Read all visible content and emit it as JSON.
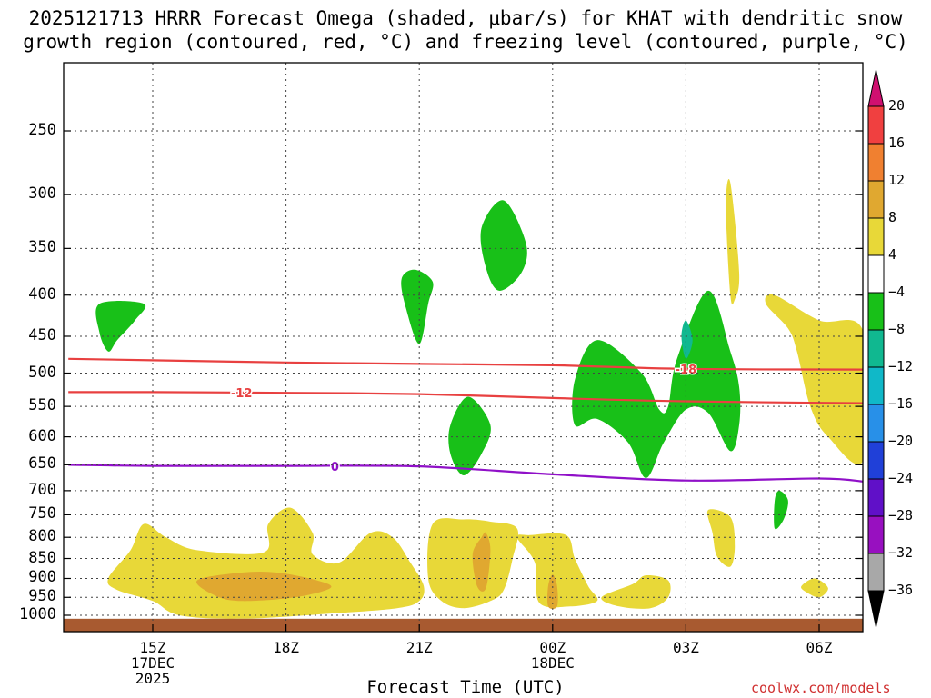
{
  "title_line1": "2025121713 HRRR Forecast Omega (shaded, μbar/s) for KHAT with dendritic snow",
  "title_line2": "growth region (contoured, red, °C) and freezing level (contoured, purple, °C)",
  "x_axis_title": "Forecast Time (UTC)",
  "credit": "coolwx.com/models",
  "chart_data": {
    "type": "time-height cross section",
    "y_axis": {
      "quantity": "pressure (mb)",
      "ticks": [
        250,
        300,
        350,
        400,
        450,
        500,
        550,
        600,
        650,
        700,
        750,
        800,
        850,
        900,
        950,
        1000
      ],
      "range": [
        200,
        1030
      ],
      "scale": "log-pressure"
    },
    "x_axis": {
      "range": [
        "2025-12-17 13Z",
        "2025-12-18 07Z"
      ],
      "ticks": [
        {
          "t": 15,
          "label": "15Z",
          "sub1": "17DEC",
          "sub2": "2025"
        },
        {
          "t": 18,
          "label": "18Z",
          "sub1": "",
          "sub2": ""
        },
        {
          "t": 21,
          "label": "21Z",
          "sub1": "",
          "sub2": ""
        },
        {
          "t": 24,
          "label": "00Z",
          "sub1": "18DEC",
          "sub2": ""
        },
        {
          "t": 27,
          "label": "03Z",
          "sub1": "",
          "sub2": ""
        },
        {
          "t": 30,
          "label": "06Z",
          "sub1": "",
          "sub2": ""
        }
      ]
    },
    "grid": true,
    "colorbar": {
      "labels": [
        "20",
        "16",
        "12",
        "8",
        "4",
        "−4",
        "−8",
        "−12",
        "−16",
        "−20",
        "−24",
        "−28",
        "−32",
        "−36"
      ],
      "colors": [
        "#d01070",
        "#f04040",
        "#f08030",
        "#e0a830",
        "#e8d838",
        "#ffffff",
        "#18c018",
        "#10b890",
        "#10b8c8",
        "#2890e8",
        "#2040d8",
        "#6010c8",
        "#9810c0",
        "#a8a8a8",
        "#000000"
      ]
    },
    "contours": [
      {
        "color": "#e84040",
        "label": "-12",
        "points": [
          [
            13.1,
            528
          ],
          [
            15,
            528
          ],
          [
            18,
            529
          ],
          [
            21,
            531
          ],
          [
            24,
            537
          ],
          [
            27,
            542
          ],
          [
            31,
            545
          ]
        ]
      },
      {
        "color": "#e84040",
        "label": "-18",
        "points": [
          [
            13.1,
            480
          ],
          [
            15,
            482
          ],
          [
            18,
            485
          ],
          [
            21,
            487
          ],
          [
            24,
            489
          ],
          [
            27,
            494
          ],
          [
            31,
            495
          ]
        ]
      },
      {
        "color": "#9010c8",
        "label": "0",
        "points": [
          [
            13.1,
            650
          ],
          [
            15,
            652
          ],
          [
            18,
            652
          ],
          [
            21,
            653
          ],
          [
            24,
            668
          ],
          [
            27,
            680
          ],
          [
            30,
            676
          ],
          [
            31,
            682
          ]
        ]
      }
    ],
    "shaded_regions": [
      {
        "category": "4 to 8",
        "color": "#e8d838",
        "points": [
          [
            14.0,
            900
          ],
          [
            14.5,
            830
          ],
          [
            14.8,
            770
          ],
          [
            15.3,
            800
          ],
          [
            16,
            830
          ],
          [
            17.5,
            835
          ],
          [
            17.6,
            770
          ],
          [
            18.1,
            735
          ],
          [
            18.6,
            790
          ],
          [
            18.6,
            840
          ],
          [
            19.2,
            860
          ],
          [
            19.9,
            790
          ],
          [
            20.4,
            800
          ],
          [
            20.8,
            860
          ],
          [
            21.1,
            920
          ],
          [
            21.0,
            960
          ],
          [
            20.5,
            980
          ],
          [
            19,
            995
          ],
          [
            17,
            1010
          ],
          [
            15.6,
            1000
          ],
          [
            15,
            960
          ],
          [
            14.2,
            930
          ]
        ]
      },
      {
        "category": "8 to 12",
        "color": "#e0a830",
        "points": [
          [
            16,
            905
          ],
          [
            17,
            885
          ],
          [
            17.8,
            885
          ],
          [
            18.7,
            905
          ],
          [
            19.0,
            925
          ],
          [
            18.2,
            950
          ],
          [
            17.0,
            960
          ],
          [
            16.4,
            945
          ]
        ]
      },
      {
        "category": "4 to 8",
        "color": "#e8d838",
        "points": [
          [
            21.2,
            900
          ],
          [
            21.3,
            770
          ],
          [
            22,
            760
          ],
          [
            22.6,
            765
          ],
          [
            23.2,
            780
          ],
          [
            23.1,
            850
          ],
          [
            22.9,
            930
          ],
          [
            22.6,
            960
          ],
          [
            22.0,
            980
          ],
          [
            21.5,
            960
          ]
        ]
      },
      {
        "category": "8 to 12",
        "color": "#e0a830",
        "points": [
          [
            22.2,
            840
          ],
          [
            22.4,
            800
          ],
          [
            22.5,
            790
          ],
          [
            22.6,
            830
          ],
          [
            22.5,
            925
          ],
          [
            22.3,
            920
          ]
        ]
      },
      {
        "category": "4 to 8",
        "color": "#e8d838",
        "points": [
          [
            23.2,
            800
          ],
          [
            23.5,
            795
          ],
          [
            24.3,
            795
          ],
          [
            24.5,
            850
          ],
          [
            24.8,
            920
          ],
          [
            25.0,
            960
          ],
          [
            24.4,
            975
          ],
          [
            23.7,
            965
          ],
          [
            23.6,
            860
          ]
        ]
      },
      {
        "category": "8 to 12",
        "color": "#e0a830",
        "points": [
          [
            23.9,
            920
          ],
          [
            24.0,
            890
          ],
          [
            24.1,
            920
          ],
          [
            24.1,
            975
          ],
          [
            23.9,
            975
          ]
        ]
      },
      {
        "category": "4 to 8",
        "color": "#e8d838",
        "points": [
          [
            25.1,
            950
          ],
          [
            25.8,
            915
          ],
          [
            26.1,
            892
          ],
          [
            26.6,
            905
          ],
          [
            26.6,
            950
          ],
          [
            26.2,
            980
          ],
          [
            25.5,
            975
          ]
        ]
      },
      {
        "category": "4 to 8",
        "color": "#e8d838",
        "points": [
          [
            27.5,
            740
          ],
          [
            28.0,
            755
          ],
          [
            28.1,
            820
          ],
          [
            28.0,
            870
          ],
          [
            27.7,
            845
          ],
          [
            27.6,
            790
          ]
        ]
      },
      {
        "category": "4 to 8",
        "color": "#e8d838",
        "points": [
          [
            29.6,
            920
          ],
          [
            29.9,
            900
          ],
          [
            30.2,
            925
          ],
          [
            30.0,
            950
          ],
          [
            29.7,
            935
          ]
        ]
      },
      {
        "category": "4 to 8",
        "color": "#e8d838",
        "points": [
          [
            27.9,
            310
          ],
          [
            28.0,
            290
          ],
          [
            28.2,
            375
          ],
          [
            28.1,
            405
          ],
          [
            28.0,
            400
          ]
        ]
      },
      {
        "category": "4 to 8",
        "color": "#e8d838",
        "points": [
          [
            28.8,
            410
          ],
          [
            29.0,
            400
          ],
          [
            30.0,
            430
          ],
          [
            31.0,
            445
          ],
          [
            31.0,
            640
          ],
          [
            30.2,
            600
          ],
          [
            29.8,
            550
          ],
          [
            29.5,
            470
          ],
          [
            29.3,
            440
          ]
        ]
      },
      {
        "category": "-4 to -8",
        "color": "#18c018",
        "points": [
          [
            13.8,
            410
          ],
          [
            14.8,
            410
          ],
          [
            14.6,
            430
          ],
          [
            14.2,
            455
          ],
          [
            14.0,
            470
          ],
          [
            13.8,
            445
          ]
        ]
      },
      {
        "category": "-4 to -8",
        "color": "#18c018",
        "points": [
          [
            20.6,
            382
          ],
          [
            20.9,
            372
          ],
          [
            21.3,
            385
          ],
          [
            21.2,
            410
          ],
          [
            21.0,
            460
          ],
          [
            20.7,
            415
          ]
        ]
      },
      {
        "category": "-4 to -8",
        "color": "#18c018",
        "points": [
          [
            22.4,
            330
          ],
          [
            22.9,
            305
          ],
          [
            23.4,
            345
          ],
          [
            23.3,
            375
          ],
          [
            22.8,
            395
          ],
          [
            22.5,
            370
          ]
        ]
      },
      {
        "category": "-4 to -8",
        "color": "#18c018",
        "points": [
          [
            21.7,
            580
          ],
          [
            22.1,
            535
          ],
          [
            22.6,
            580
          ],
          [
            22.4,
            630
          ],
          [
            22.0,
            670
          ],
          [
            21.7,
            630
          ]
        ]
      },
      {
        "category": "-4 to -8",
        "color": "#18c018",
        "points": [
          [
            24.5,
            510
          ],
          [
            25.0,
            455
          ],
          [
            26.0,
            500
          ],
          [
            26.4,
            555
          ],
          [
            26.6,
            550
          ],
          [
            26.8,
            480
          ],
          [
            27.5,
            395
          ],
          [
            28.0,
            470
          ],
          [
            28.2,
            520
          ],
          [
            28.2,
            580
          ],
          [
            28.0,
            625
          ],
          [
            27.5,
            560
          ],
          [
            27.0,
            555
          ],
          [
            26.5,
            610
          ],
          [
            26.1,
            675
          ],
          [
            25.7,
            610
          ],
          [
            25.0,
            570
          ],
          [
            24.5,
            580
          ]
        ]
      },
      {
        "category": "-8 to -12",
        "color": "#10b890",
        "points": [
          [
            26.9,
            450
          ],
          [
            27.0,
            430
          ],
          [
            27.15,
            455
          ],
          [
            27.0,
            480
          ]
        ]
      },
      {
        "category": "-4 to -8",
        "color": "#18c018",
        "points": [
          [
            29.0,
            720
          ],
          [
            29.1,
            700
          ],
          [
            29.3,
            720
          ],
          [
            29.2,
            760
          ],
          [
            29.0,
            780
          ]
        ]
      }
    ],
    "ground": {
      "color": "#a85a30",
      "top_mb": 1010
    }
  }
}
